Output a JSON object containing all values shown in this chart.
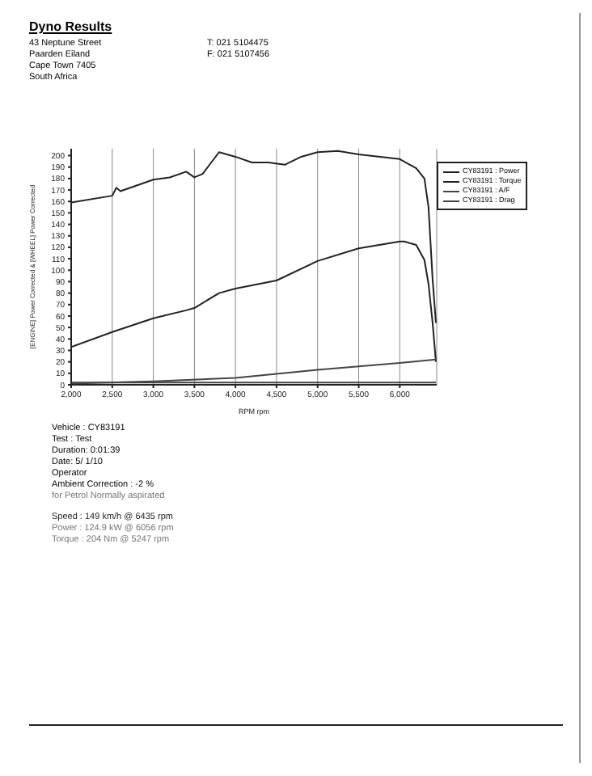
{
  "chart_data": {
    "type": "line",
    "title": "Dyno Results",
    "xlabel": "RPM rpm",
    "ylabel": "[ENGINE] Power Corrected & [WHEEL] Power Corrected",
    "annotations": [
      "43 Neptune Street",
      "Paarden Eiland",
      "Cape Town 7405",
      "South Africa",
      "T: 021 5104475",
      "F: 021 5107456",
      "Vehicle : CY83191",
      "Test : Test",
      "Duration: 0:01:39",
      "Date: 5/ 1/10",
      "Operator",
      "Ambient Correction : -2 %",
      "for Petrol Normally aspirated",
      "Speed : 149 km/h @ 6435 rpm",
      "Power : 124.9 kW @ 6056 rpm",
      "Torque : 204 Nm @ 5247 rpm"
    ],
    "series": [
      {
        "name": "CY83191 : Power",
        "color": "#222222",
        "x": [
          2000,
          2500,
          3000,
          3400,
          3500,
          3800,
          4000,
          4500,
          5000,
          5500,
          6000,
          6056,
          6200,
          6300,
          6350,
          6400,
          6440
        ],
        "values": [
          33,
          46,
          58,
          65,
          67,
          80,
          84,
          91,
          108,
          119,
          125,
          125,
          122,
          109,
          88,
          54,
          20
        ]
      },
      {
        "name": "CY83191 : Torque",
        "color": "#222222",
        "x": [
          2000,
          2500,
          2550,
          2600,
          3000,
          3200,
          3400,
          3500,
          3600,
          3800,
          4000,
          4200,
          4400,
          4600,
          4800,
          5000,
          5247,
          5500,
          6000,
          6200,
          6300,
          6350,
          6400,
          6440
        ],
        "values": [
          159,
          165,
          172,
          169,
          179,
          181,
          186,
          181,
          184,
          203,
          199,
          194,
          194,
          192,
          199,
          203,
          204,
          201,
          197,
          189,
          180,
          155,
          92,
          54
        ]
      },
      {
        "name": "CY83191 : A/F",
        "color": "#444444",
        "x": [
          2000,
          6440
        ],
        "values": [
          2,
          2
        ]
      },
      {
        "name": "CY83191 : Drag",
        "color": "#444444",
        "x": [
          2000,
          3000,
          4000,
          5000,
          6000,
          6440
        ],
        "values": [
          1,
          3,
          6,
          13,
          19,
          22
        ]
      }
    ],
    "xlim": [
      2000,
      6450
    ],
    "xticks": [
      {
        "value": 2000,
        "label": "2,000"
      },
      {
        "value": 2500,
        "label": "2,500"
      },
      {
        "value": 3000,
        "label": "3,000"
      },
      {
        "value": 3500,
        "label": "3,500"
      },
      {
        "value": 4000,
        "label": "4,000"
      },
      {
        "value": 4500,
        "label": "4,500"
      },
      {
        "value": 5000,
        "label": "5,000"
      },
      {
        "value": 5500,
        "label": "5,500"
      },
      {
        "value": 6000,
        "label": "6,000"
      }
    ],
    "ylim": [
      0,
      206
    ],
    "yticks": [
      0,
      10,
      20,
      30,
      40,
      50,
      60,
      70,
      80,
      90,
      100,
      110,
      120,
      130,
      140,
      150,
      160,
      170,
      180,
      190,
      200
    ],
    "grid": "x",
    "legend": "right",
    "marker": "none",
    "line_style": "solid"
  }
}
